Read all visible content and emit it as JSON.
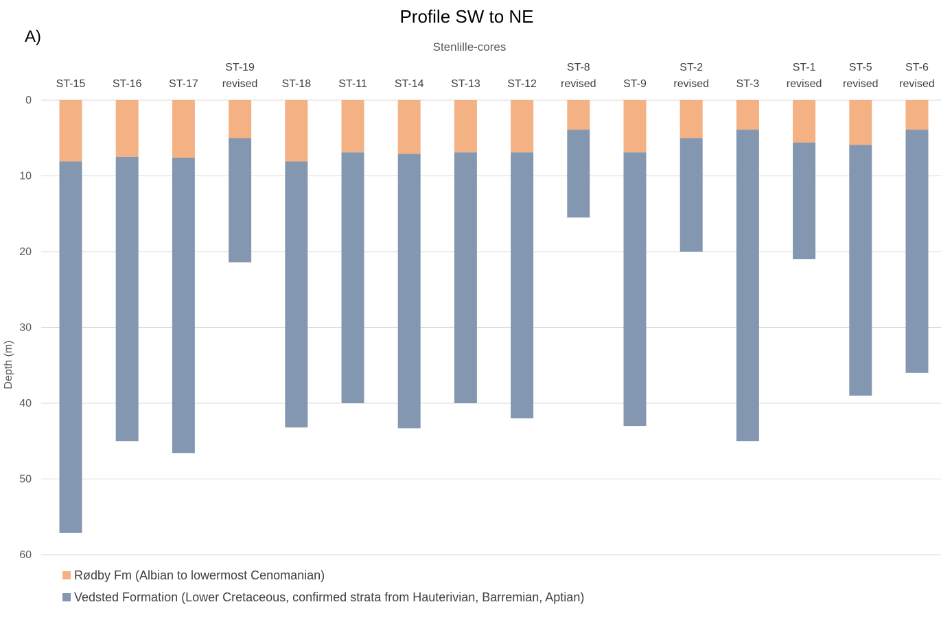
{
  "chart_data": {
    "type": "bar",
    "stacked": true,
    "title": "Profile SW to NE",
    "panel_label": "A)",
    "subtitle": "Stenlille-cores",
    "ylabel": "Depth (m)",
    "xlabel": "",
    "y_inverted": true,
    "ylim": [
      0,
      60
    ],
    "yticks": [
      0,
      10,
      20,
      30,
      40,
      50,
      60
    ],
    "grid": true,
    "legend_position": "bottom-left",
    "categories": [
      [
        "ST-15"
      ],
      [
        "ST-16"
      ],
      [
        "ST-17"
      ],
      [
        "ST-19",
        "revised"
      ],
      [
        "ST-18"
      ],
      [
        "ST-11"
      ],
      [
        "ST-14"
      ],
      [
        "ST-13"
      ],
      [
        "ST-12"
      ],
      [
        "ST-8",
        "revised"
      ],
      [
        "ST-9"
      ],
      [
        "ST-2",
        "revised"
      ],
      [
        "ST-3"
      ],
      [
        "ST-1",
        "revised"
      ],
      [
        "ST-5",
        "revised"
      ],
      [
        "ST-6",
        "revised"
      ]
    ],
    "series": [
      {
        "name": "Rødby Fm (Albian to lowermost Cenomanian)",
        "color": "#F4B183",
        "values": [
          8.1,
          7.5,
          7.6,
          5.0,
          8.1,
          6.9,
          7.1,
          6.9,
          6.9,
          3.9,
          6.9,
          5.0,
          3.9,
          5.6,
          5.9,
          3.9
        ]
      },
      {
        "name": "Vedsted Formation (Lower Cretaceous, confirmed strata from Hauterivian, Barremian, Aptian)",
        "color": "#8497B0",
        "values": [
          49.0,
          37.5,
          39.0,
          16.4,
          35.1,
          33.1,
          36.2,
          33.1,
          35.1,
          11.6,
          36.1,
          15.0,
          41.1,
          15.4,
          33.1,
          32.1
        ]
      }
    ]
  }
}
